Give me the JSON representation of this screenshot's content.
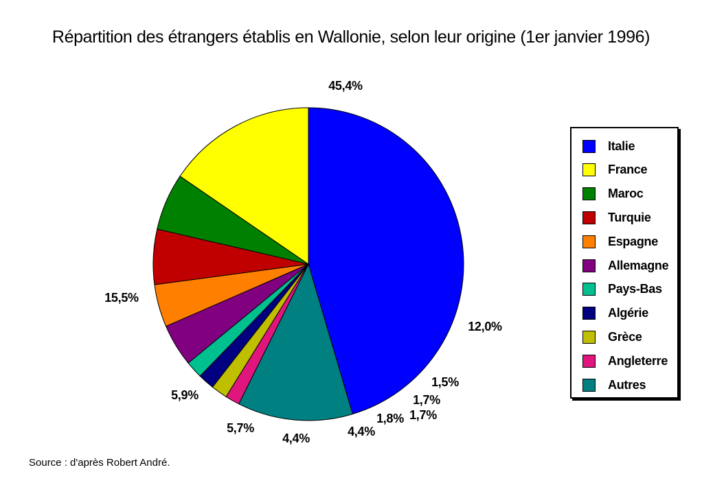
{
  "chart_data": {
    "type": "pie",
    "title": "Répartition des étrangers établis en Wallonie, selon leur origine (1er janvier 1996)",
    "legend_position": "right",
    "start_angle_deg": 90,
    "direction": "clockwise",
    "slices": [
      {
        "name": "Italie",
        "value": 45.4,
        "label": "45,4%",
        "color": "#0000ff"
      },
      {
        "name": "Autres",
        "value": 12.0,
        "label": "12,0%",
        "color": "#008080"
      },
      {
        "name": "Angleterre",
        "value": 1.5,
        "label": "1,5%",
        "color": "#e0157e"
      },
      {
        "name": "Grèce",
        "value": 1.7,
        "label": "1,7%",
        "color": "#bfbf00"
      },
      {
        "name": "Algérie",
        "value": 1.7,
        "label": "1,7%",
        "color": "#000080"
      },
      {
        "name": "Pays-Bas",
        "value": 1.8,
        "label": "1,8%",
        "color": "#00c090"
      },
      {
        "name": "Allemagne",
        "value": 4.4,
        "label": "4,4%",
        "color": "#800080"
      },
      {
        "name": "Espagne",
        "value": 4.4,
        "label": "4,4%",
        "color": "#ff8000"
      },
      {
        "name": "Turquie",
        "value": 5.7,
        "label": "5,7%",
        "color": "#c00000"
      },
      {
        "name": "Maroc",
        "value": 5.9,
        "label": "5,9%",
        "color": "#008000"
      },
      {
        "name": "France",
        "value": 15.5,
        "label": "15,5%",
        "color": "#ffff00"
      }
    ],
    "legend": [
      {
        "name": "Italie",
        "color": "#0000ff"
      },
      {
        "name": "France",
        "color": "#ffff00"
      },
      {
        "name": "Maroc",
        "color": "#008000"
      },
      {
        "name": "Turquie",
        "color": "#c00000"
      },
      {
        "name": "Espagne",
        "color": "#ff8000"
      },
      {
        "name": "Allemagne",
        "color": "#800080"
      },
      {
        "name": "Pays-Bas",
        "color": "#00c090"
      },
      {
        "name": "Algérie",
        "color": "#000080"
      },
      {
        "name": "Grèce",
        "color": "#bfbf00"
      },
      {
        "name": "Angleterre",
        "color": "#e0157e"
      },
      {
        "name": "Autres",
        "color": "#008080"
      }
    ]
  },
  "source": "Source : d'après Robert André."
}
